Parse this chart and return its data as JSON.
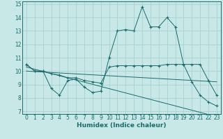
{
  "bg_color": "#c8e8e8",
  "grid_color": "#a8d0d0",
  "line_color": "#1a6b6b",
  "xlabel": "Humidex (Indice chaleur)",
  "xlim": [
    -0.5,
    23.5
  ],
  "ylim": [
    6.8,
    15.2
  ],
  "yticks": [
    7,
    8,
    9,
    10,
    11,
    12,
    13,
    14,
    15
  ],
  "xticks": [
    0,
    1,
    2,
    3,
    4,
    5,
    6,
    7,
    8,
    9,
    10,
    11,
    12,
    13,
    14,
    15,
    16,
    17,
    18,
    19,
    20,
    21,
    22,
    23
  ],
  "series": [
    {
      "x": [
        0,
        1,
        2,
        3,
        4,
        5,
        6,
        7,
        8,
        9,
        10,
        11,
        12,
        13,
        14,
        15,
        16,
        17,
        18,
        19,
        20,
        21,
        22,
        23
      ],
      "y": [
        10.5,
        10.0,
        10.0,
        8.7,
        8.2,
        9.3,
        9.4,
        8.8,
        8.4,
        8.5,
        11.0,
        13.0,
        13.1,
        13.0,
        14.8,
        13.3,
        13.3,
        14.0,
        13.3,
        10.5,
        9.2,
        8.2,
        7.7,
        7.4
      ],
      "marker": true
    },
    {
      "x": [
        0,
        1,
        2,
        3,
        4,
        5,
        6,
        7,
        8,
        9,
        10,
        11,
        12,
        13,
        14,
        15,
        16,
        17,
        18,
        19,
        20,
        21,
        22,
        23
      ],
      "y": [
        10.5,
        10.0,
        10.0,
        9.8,
        9.7,
        9.5,
        9.5,
        9.3,
        9.2,
        9.1,
        10.3,
        10.4,
        10.4,
        10.4,
        10.4,
        10.4,
        10.4,
        10.5,
        10.5,
        10.5,
        10.5,
        10.5,
        9.3,
        8.2
      ],
      "marker": true
    },
    {
      "x": [
        0,
        23
      ],
      "y": [
        10.3,
        6.6
      ],
      "marker": false
    },
    {
      "x": [
        0,
        23
      ],
      "y": [
        10.0,
        9.2
      ],
      "marker": false
    }
  ]
}
